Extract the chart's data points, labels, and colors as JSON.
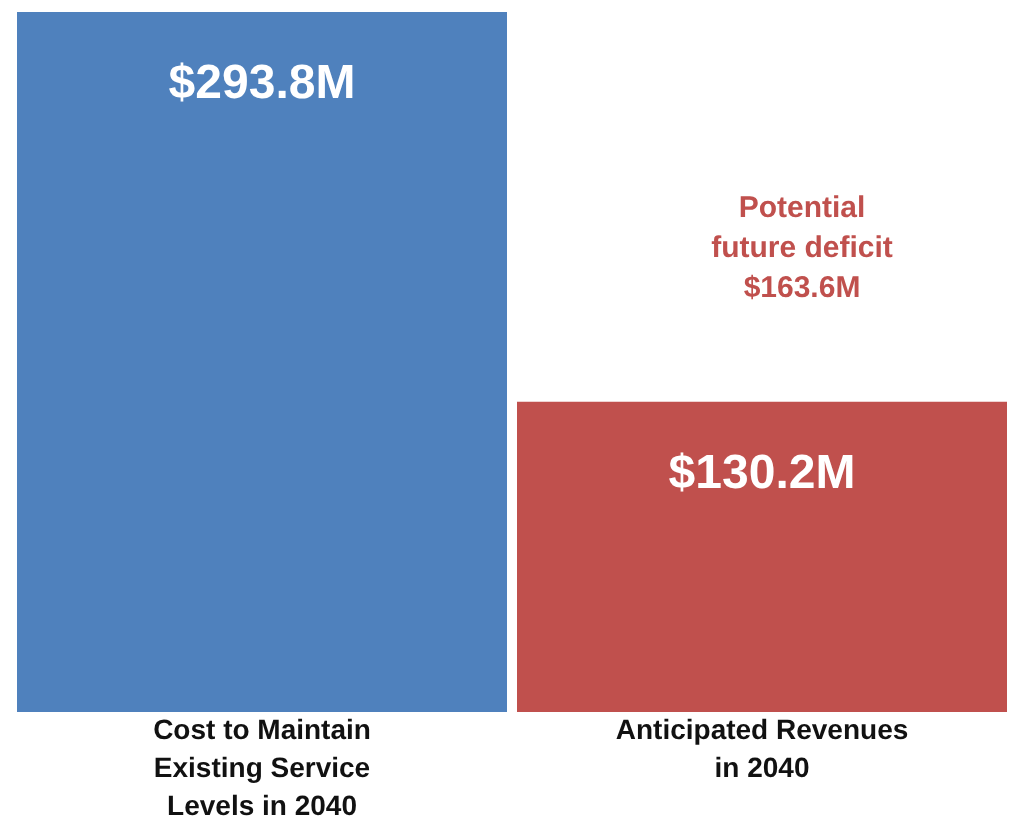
{
  "chart_data": {
    "type": "bar",
    "categories": [
      "Cost to Maintain Existing Service Levels in 2040",
      "Anticipated Revenues in 2040"
    ],
    "values": [
      293.8,
      130.2
    ],
    "colors": [
      "#4f81bd",
      "#c0504d"
    ],
    "value_labels": [
      "$293.8M",
      "$130.2M"
    ],
    "annotations": [
      "Potential future deficit $163.6M"
    ],
    "tick_labels": "x",
    "grid": false,
    "legend": false
  }
}
